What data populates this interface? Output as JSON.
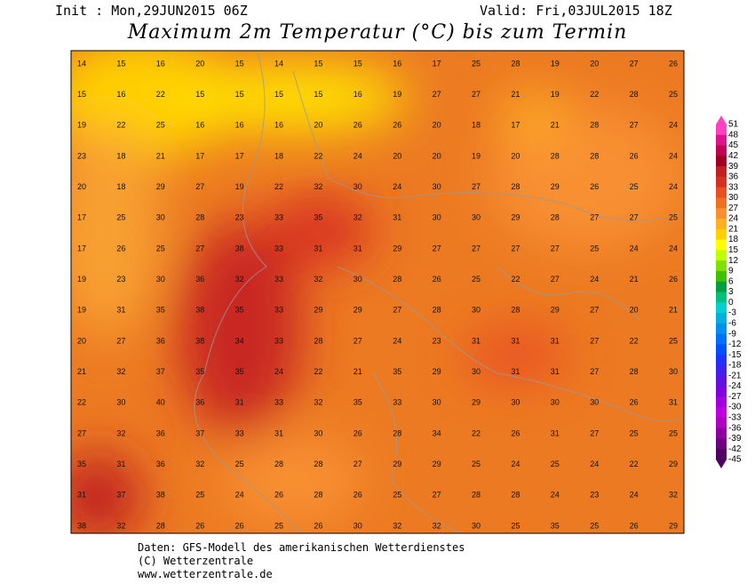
{
  "header": {
    "init": "Init : Mon,29JUN2015 06Z",
    "valid": "Valid: Fri,03JUL2015 18Z"
  },
  "title": "Maximum 2m Temperatur (°C) bis zum Termin",
  "map": {
    "values": [
      [
        14,
        15,
        16,
        20,
        15,
        14,
        15,
        15,
        16,
        17,
        25,
        28,
        19,
        20,
        27,
        26
      ],
      [
        15,
        16,
        22,
        15,
        15,
        15,
        15,
        16,
        19,
        27,
        27,
        21,
        19,
        22,
        28,
        25
      ],
      [
        19,
        22,
        25,
        16,
        16,
        16,
        20,
        26,
        26,
        20,
        18,
        17,
        21,
        28,
        27,
        24
      ],
      [
        23,
        18,
        21,
        17,
        17,
        18,
        22,
        24,
        20,
        20,
        19,
        20,
        28,
        28,
        26,
        24
      ],
      [
        20,
        18,
        29,
        27,
        19,
        22,
        32,
        30,
        24,
        30,
        27,
        28,
        29,
        26,
        25,
        24
      ],
      [
        17,
        25,
        30,
        28,
        23,
        33,
        35,
        32,
        31,
        30,
        30,
        29,
        28,
        27,
        27,
        25
      ],
      [
        17,
        26,
        25,
        27,
        38,
        33,
        31,
        31,
        29,
        27,
        27,
        27,
        27,
        25,
        24,
        24
      ],
      [
        19,
        23,
        30,
        36,
        32,
        33,
        32,
        30,
        28,
        26,
        25,
        22,
        27,
        24,
        21,
        26
      ],
      [
        19,
        31,
        35,
        38,
        35,
        33,
        29,
        29,
        27,
        28,
        30,
        28,
        29,
        27,
        20,
        21
      ],
      [
        20,
        27,
        36,
        38,
        34,
        33,
        28,
        27,
        24,
        23,
        31,
        31,
        31,
        27,
        22,
        25
      ],
      [
        21,
        32,
        37,
        35,
        35,
        24,
        22,
        21,
        35,
        29,
        30,
        31,
        31,
        27,
        28,
        30
      ],
      [
        22,
        30,
        40,
        36,
        31,
        33,
        32,
        35,
        33,
        30,
        29,
        30,
        30,
        30,
        26,
        31
      ],
      [
        27,
        32,
        36,
        37,
        33,
        31,
        30,
        26,
        28,
        34,
        22,
        26,
        31,
        27,
        25,
        25
      ],
      [
        35,
        31,
        36,
        32,
        25,
        28,
        28,
        27,
        29,
        29,
        25,
        24,
        25,
        24,
        22,
        29
      ],
      [
        31,
        37,
        38,
        25,
        24,
        26,
        28,
        26,
        25,
        27,
        28,
        28,
        24,
        23,
        24,
        32
      ],
      [
        38,
        32,
        28,
        26,
        26,
        25,
        26,
        30,
        32,
        32,
        30,
        25,
        35,
        25,
        26,
        29
      ]
    ]
  },
  "legend": {
    "labels": [
      51,
      48,
      45,
      42,
      39,
      36,
      33,
      30,
      27,
      24,
      21,
      18,
      15,
      12,
      9,
      6,
      3,
      0,
      -3,
      -6,
      -9,
      -12,
      -15,
      -18,
      -21,
      -24,
      -27,
      -30,
      -33,
      -36,
      -39,
      -42,
      -45
    ],
    "colors": [
      "#ff40c0",
      "#e0108f",
      "#c00050",
      "#a00020",
      "#c02020",
      "#d83020",
      "#e85020",
      "#f07020",
      "#f89030",
      "#ffb020",
      "#ffd000",
      "#ffff00",
      "#c0ff00",
      "#80e000",
      "#40c000",
      "#00a040",
      "#00c080",
      "#00d0d0",
      "#00b0e0",
      "#0090f0",
      "#0070ff",
      "#0050ff",
      "#2030ff",
      "#4020f0",
      "#6010e0",
      "#8000e0",
      "#a000e0",
      "#c000e0",
      "#b000c0",
      "#9000a0",
      "#700080",
      "#500060"
    ]
  },
  "footer": [
    "Daten: GFS-Modell des amerikanischen Wetterdienstes",
    "(C) Wetterzentrale",
    "www.wetterzentrale.de"
  ]
}
